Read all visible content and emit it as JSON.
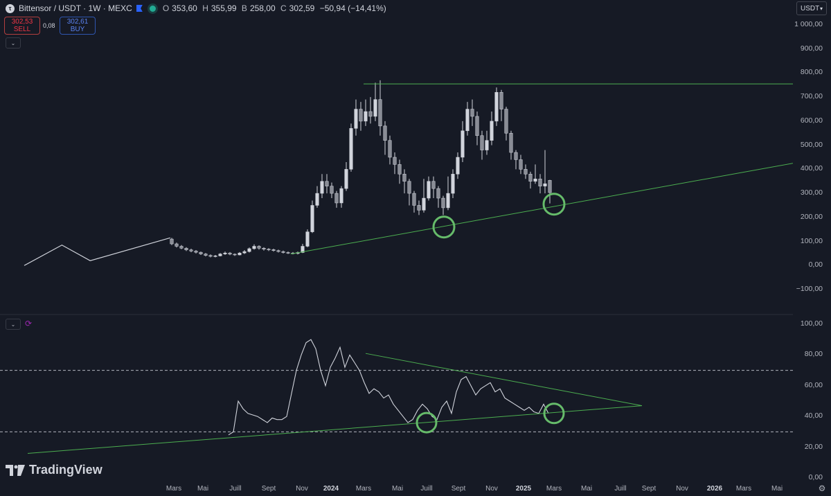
{
  "header": {
    "symbol_title": "Bittensor / USDT · 1W · MEXC",
    "ohlc": [
      {
        "key": "O",
        "value": "353,60"
      },
      {
        "key": "H",
        "value": "355,99"
      },
      {
        "key": "B",
        "value": "258,00"
      },
      {
        "key": "C",
        "value": "302,59"
      }
    ],
    "change": "−50,94 (−14,41%)",
    "sell_price": "302,53",
    "sell_label": "SELL",
    "spread": "0,08",
    "buy_price": "302,61",
    "buy_label": "BUY",
    "currency": "USDT"
  },
  "price_axis": [
    "1 000,00",
    "900,00",
    "800,00",
    "700,00",
    "600,00",
    "500,00",
    "400,00",
    "300,00",
    "200,00",
    "100,00",
    "0,00",
    "−100,00"
  ],
  "rsi_axis": [
    "100,00",
    "80,00",
    "60,00",
    "40,00",
    "20,00",
    "0,00"
  ],
  "time_axis": [
    {
      "label": "Mars",
      "year": false
    },
    {
      "label": "Mai",
      "year": false
    },
    {
      "label": "Juill",
      "year": false
    },
    {
      "label": "Sept",
      "year": false
    },
    {
      "label": "Nov",
      "year": false
    },
    {
      "label": "2024",
      "year": true
    },
    {
      "label": "Mars",
      "year": false
    },
    {
      "label": "Mai",
      "year": false
    },
    {
      "label": "Juill",
      "year": false
    },
    {
      "label": "Sept",
      "year": false
    },
    {
      "label": "Nov",
      "year": false
    },
    {
      "label": "2025",
      "year": true
    },
    {
      "label": "Mars",
      "year": false
    },
    {
      "label": "Mai",
      "year": false
    },
    {
      "label": "Juill",
      "year": false
    },
    {
      "label": "Sept",
      "year": false
    },
    {
      "label": "Nov",
      "year": false
    },
    {
      "label": "2026",
      "year": true
    },
    {
      "label": "Mars",
      "year": false
    },
    {
      "label": "Mai",
      "year": false
    }
  ],
  "branding": "TradingView",
  "colors": {
    "background": "#161a25",
    "candle": "#d1d4dc",
    "trendline": "#4caf50",
    "circle": "#66bb6a",
    "sell": "#f23645",
    "buy": "#2962ff"
  },
  "chart_data": [
    {
      "type": "candlestick",
      "title": "Bittensor / USDT · 1W · MEXC",
      "ylim": [
        -100,
        1000
      ],
      "pre_candle_line": [
        [
          0,
          0
        ],
        [
          8,
          85
        ],
        [
          14,
          20
        ],
        [
          31,
          115
        ]
      ],
      "candles": [
        [
          110,
          90,
          115,
          85
        ],
        [
          90,
          80,
          95,
          75
        ],
        [
          80,
          72,
          85,
          68
        ],
        [
          72,
          65,
          76,
          60
        ],
        [
          65,
          60,
          70,
          55
        ],
        [
          60,
          55,
          64,
          50
        ],
        [
          55,
          48,
          58,
          44
        ],
        [
          48,
          42,
          52,
          38
        ],
        [
          42,
          38,
          46,
          34
        ],
        [
          38,
          40,
          44,
          34
        ],
        [
          40,
          48,
          52,
          38
        ],
        [
          48,
          52,
          58,
          44
        ],
        [
          52,
          47,
          56,
          43
        ],
        [
          47,
          44,
          50,
          40
        ],
        [
          44,
          52,
          56,
          42
        ],
        [
          52,
          58,
          64,
          48
        ],
        [
          58,
          70,
          75,
          54
        ],
        [
          70,
          80,
          88,
          66
        ],
        [
          80,
          72,
          84,
          66
        ],
        [
          72,
          68,
          76,
          62
        ],
        [
          68,
          66,
          72,
          60
        ],
        [
          66,
          62,
          70,
          58
        ],
        [
          62,
          58,
          66,
          54
        ],
        [
          58,
          54,
          62,
          50
        ],
        [
          54,
          52,
          58,
          48
        ],
        [
          52,
          50,
          56,
          46
        ],
        [
          50,
          54,
          58,
          46
        ],
        [
          54,
          80,
          90,
          52
        ],
        [
          80,
          140,
          150,
          76
        ],
        [
          140,
          250,
          270,
          135
        ],
        [
          250,
          300,
          330,
          240
        ],
        [
          300,
          350,
          380,
          280
        ],
        [
          350,
          330,
          380,
          300
        ],
        [
          330,
          300,
          345,
          280
        ],
        [
          300,
          260,
          310,
          240
        ],
        [
          260,
          320,
          330,
          240
        ],
        [
          320,
          400,
          430,
          310
        ],
        [
          400,
          570,
          590,
          390
        ],
        [
          570,
          650,
          690,
          540
        ],
        [
          650,
          600,
          680,
          560
        ],
        [
          600,
          640,
          690,
          580
        ],
        [
          640,
          620,
          700,
          590
        ],
        [
          620,
          690,
          760,
          600
        ],
        [
          690,
          580,
          770,
          540
        ],
        [
          580,
          520,
          600,
          460
        ],
        [
          520,
          450,
          540,
          420
        ],
        [
          450,
          420,
          470,
          380
        ],
        [
          420,
          380,
          440,
          340
        ],
        [
          380,
          350,
          400,
          300
        ],
        [
          350,
          300,
          360,
          250
        ],
        [
          300,
          250,
          310,
          220
        ],
        [
          250,
          230,
          270,
          210
        ],
        [
          230,
          280,
          360,
          220
        ],
        [
          280,
          350,
          370,
          270
        ],
        [
          350,
          320,
          370,
          280
        ],
        [
          320,
          280,
          330,
          240
        ],
        [
          280,
          240,
          290,
          210
        ],
        [
          240,
          300,
          370,
          230
        ],
        [
          300,
          380,
          400,
          280
        ],
        [
          380,
          450,
          470,
          360
        ],
        [
          450,
          560,
          600,
          430
        ],
        [
          560,
          650,
          680,
          540
        ],
        [
          650,
          620,
          690,
          580
        ],
        [
          620,
          540,
          640,
          500
        ],
        [
          540,
          480,
          560,
          440
        ],
        [
          480,
          520,
          560,
          460
        ],
        [
          520,
          600,
          640,
          500
        ],
        [
          600,
          720,
          740,
          580
        ],
        [
          720,
          650,
          730,
          600
        ],
        [
          650,
          550,
          660,
          520
        ],
        [
          550,
          470,
          560,
          440
        ],
        [
          470,
          440,
          480,
          400
        ],
        [
          440,
          400,
          460,
          380
        ],
        [
          400,
          380,
          420,
          360
        ],
        [
          380,
          350,
          390,
          320
        ],
        [
          350,
          360,
          420,
          340
        ],
        [
          360,
          330,
          380,
          300
        ],
        [
          330,
          340,
          480,
          300
        ],
        [
          354,
          303,
          356,
          258
        ]
      ]
    },
    {
      "type": "line",
      "title": "RSI",
      "ylim": [
        0,
        100
      ],
      "reference_lines": [
        70,
        30
      ],
      "values": [
        28,
        30,
        50,
        45,
        42,
        41,
        40,
        38,
        36,
        39,
        38,
        38,
        40,
        55,
        70,
        80,
        88,
        90,
        84,
        70,
        60,
        72,
        78,
        85,
        72,
        80,
        75,
        70,
        62,
        55,
        58,
        56,
        52,
        54,
        48,
        44,
        40,
        36,
        38,
        44,
        48,
        45,
        40,
        38,
        46,
        50,
        42,
        56,
        64,
        66,
        60,
        54,
        58,
        60,
        62,
        56,
        58,
        52,
        50,
        48,
        46,
        44,
        46,
        43,
        42,
        48,
        42
      ]
    }
  ]
}
